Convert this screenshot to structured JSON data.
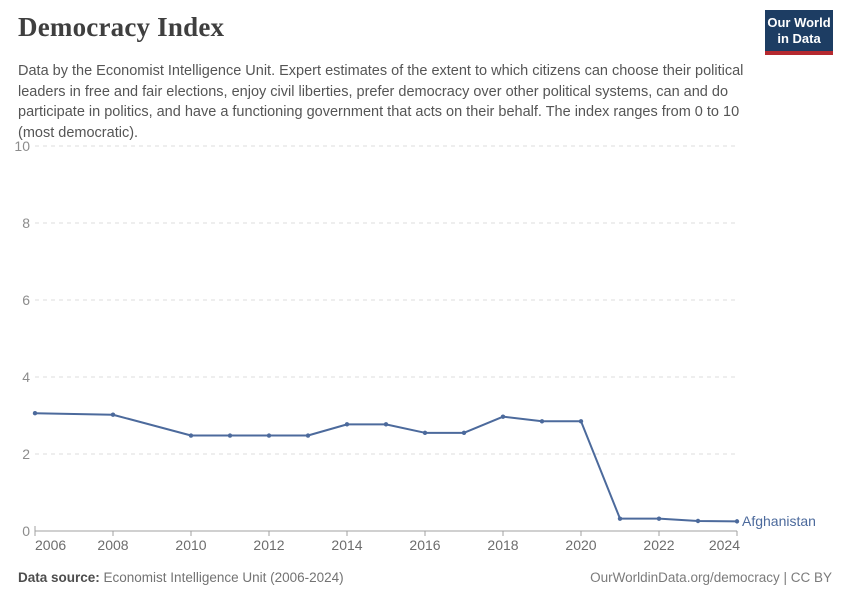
{
  "header": {
    "title": "Democracy Index",
    "subtitle": "Data by the Economist Intelligence Unit. Expert estimates of the extent to which citizens can choose their political leaders in free and fair elections, enjoy civil liberties, prefer democracy over other political systems, can and do participate in politics, and have a functioning government that acts on their behalf. The index ranges from 0 to 10 (most democratic).",
    "logo": {
      "line1": "Our World",
      "line2": "in Data",
      "bg_color": "#1d3d63",
      "accent_color": "#b5292f"
    }
  },
  "chart_data": {
    "type": "line",
    "title": "Democracy Index",
    "xlabel": "",
    "ylabel": "",
    "xlim": [
      2006,
      2024
    ],
    "ylim": [
      0,
      10
    ],
    "grid": "horizontal dashed gridlines on",
    "legend_position": "label at end of line",
    "x_ticks": [
      2006,
      2008,
      2010,
      2012,
      2014,
      2016,
      2018,
      2020,
      2022,
      2024
    ],
    "y_ticks": [
      0,
      2,
      4,
      6,
      8,
      10
    ],
    "series": [
      {
        "name": "Afghanistan",
        "color": "#4C6A9C",
        "points": [
          {
            "x": 2006,
            "y": 3.06
          },
          {
            "x": 2008,
            "y": 3.02
          },
          {
            "x": 2010,
            "y": 2.48
          },
          {
            "x": 2011,
            "y": 2.48
          },
          {
            "x": 2012,
            "y": 2.48
          },
          {
            "x": 2013,
            "y": 2.48
          },
          {
            "x": 2014,
            "y": 2.77
          },
          {
            "x": 2015,
            "y": 2.77
          },
          {
            "x": 2016,
            "y": 2.55
          },
          {
            "x": 2017,
            "y": 2.55
          },
          {
            "x": 2018,
            "y": 2.97
          },
          {
            "x": 2019,
            "y": 2.85
          },
          {
            "x": 2020,
            "y": 2.85
          },
          {
            "x": 2021,
            "y": 0.32
          },
          {
            "x": 2022,
            "y": 0.32
          },
          {
            "x": 2023,
            "y": 0.26
          },
          {
            "x": 2024,
            "y": 0.25
          }
        ]
      }
    ],
    "axis_colors": {
      "grid_line": "#dedede",
      "axis_line": "#a1a1a1",
      "y_tick_label": "#8c8c8c",
      "x_tick_label": "#6d6d6d"
    }
  },
  "footer": {
    "source_label": "Data source:",
    "source_value": " Economist Intelligence Unit (2006-2024)",
    "credit": "OurWorldinData.org/democracy | CC BY"
  }
}
